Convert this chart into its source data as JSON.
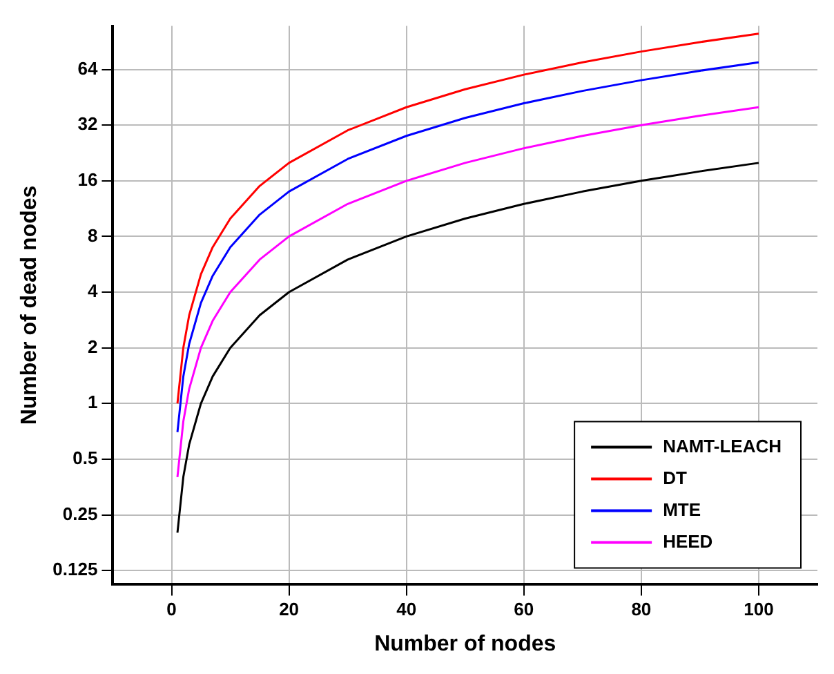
{
  "chart_data": {
    "type": "line",
    "xlabel": "Number of nodes",
    "ylabel": "Number of dead nodes",
    "x": [
      1,
      2,
      3,
      5,
      7,
      10,
      15,
      20,
      30,
      40,
      50,
      60,
      70,
      80,
      90,
      100
    ],
    "series": [
      {
        "name": "NAMT-LEACH",
        "color": "#000000",
        "values": [
          0.2,
          0.4,
          0.6,
          1,
          1.4,
          2,
          3,
          4,
          6,
          8,
          10,
          12,
          14,
          16,
          18,
          20
        ]
      },
      {
        "name": "DT",
        "color": "#ff0000",
        "values": [
          1,
          2,
          3,
          5,
          7,
          10,
          15,
          20,
          30,
          40,
          50,
          60,
          70,
          80,
          90,
          100
        ]
      },
      {
        "name": "MTE",
        "color": "#0000ff",
        "values": [
          0.7,
          1.4,
          2.1,
          3.5,
          4.9,
          7,
          10.5,
          14,
          21,
          28,
          35,
          42,
          49,
          56,
          63,
          70
        ]
      },
      {
        "name": "HEED",
        "color": "#ff00ff",
        "values": [
          0.4,
          0.8,
          1.2,
          2,
          2.8,
          4,
          6,
          8,
          12,
          16,
          20,
          24,
          28,
          32,
          36,
          40
        ]
      }
    ],
    "log": "y",
    "xlim": [
      -10,
      110
    ],
    "xticks": [
      0,
      20,
      40,
      60,
      80,
      100
    ],
    "ylim": [
      0.105,
      110
    ],
    "yticks": [
      0.125,
      0.25,
      0.5,
      1,
      2,
      4,
      8,
      16,
      32,
      64
    ],
    "grid": true,
    "legend": "bottom right",
    "marker": "none",
    "line_style": "solid"
  }
}
